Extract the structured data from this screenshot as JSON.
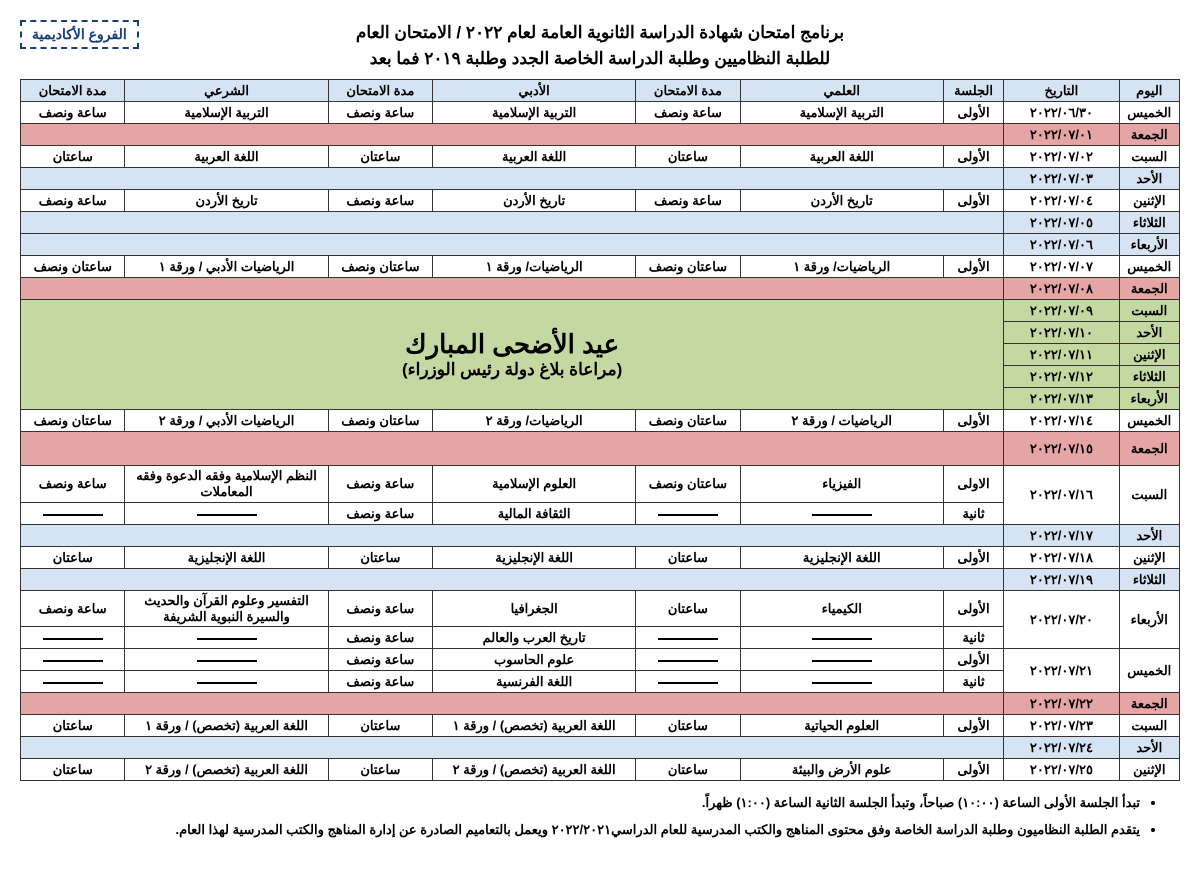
{
  "badge": "الفروع الأكاديمية",
  "title1": "برنامج امتحان شهادة الدراسة الثانوية العامة لعام ٢٠٢٢ / الامتحان العام",
  "title2": "للطلبة النظاميين وطلبة الدراسة الخاصة الجدد وطلبة ٢٠١٩ فما بعد",
  "headers": {
    "day": "اليوم",
    "date": "التاريخ",
    "session": "الجلسة",
    "sci": "العلمي",
    "lit": "الأدبي",
    "rel": "الشرعي",
    "dur": "مدة الامتحان"
  },
  "holiday": {
    "title": "عيد الأضحى المبارك",
    "sub": "(مراعاة بلاغ دولة رئيس الوزراء)"
  },
  "rows": [
    {
      "day": "الخميس",
      "date": "٢٠٢٢/٠٦/٣٠",
      "sess": "الأولى",
      "sci": "التربية الإسلامية",
      "dsci": "ساعة ونصف",
      "lit": "التربية الإسلامية",
      "dlit": "ساعة ونصف",
      "rel": "التربية الإسلامية",
      "drel": "ساعة ونصف",
      "bg": "white"
    },
    {
      "day": "الجمعة",
      "date": "٢٠٢٢/٠٧/٠١",
      "bg": "red",
      "span": true
    },
    {
      "day": "السبت",
      "date": "٢٠٢٢/٠٧/٠٢",
      "sess": "الأولى",
      "sci": "اللغة العربية",
      "dsci": "ساعتان",
      "lit": "اللغة العربية",
      "dlit": "ساعتان",
      "rel": "اللغة العربية",
      "drel": "ساعتان",
      "bg": "white"
    },
    {
      "day": "الأحد",
      "date": "٢٠٢٢/٠٧/٠٣",
      "bg": "blue",
      "span": true
    },
    {
      "day": "الإثنين",
      "date": "٢٠٢٢/٠٧/٠٤",
      "sess": "الأولى",
      "sci": "تاريخ الأردن",
      "dsci": "ساعة ونصف",
      "lit": "تاريخ الأردن",
      "dlit": "ساعة ونصف",
      "rel": "تاريخ الأردن",
      "drel": "ساعة ونصف",
      "bg": "white"
    },
    {
      "day": "الثلاثاء",
      "date": "٢٠٢٢/٠٧/٠٥",
      "bg": "blue",
      "span": true
    },
    {
      "day": "الأربعاء",
      "date": "٢٠٢٢/٠٧/٠٦",
      "bg": "blue",
      "span": true
    },
    {
      "day": "الخميس",
      "date": "٢٠٢٢/٠٧/٠٧",
      "sess": "الأولى",
      "sci": "الرياضيات/ ورقة ١",
      "dsci": "ساعتان ونصف",
      "lit": "الرياضيات/ ورقة ١",
      "dlit": "ساعتان ونصف",
      "rel": "الرياضيات الأدبي / ورقة ١",
      "drel": "ساعتان ونصف",
      "bg": "white"
    },
    {
      "day": "الجمعة",
      "date": "٢٠٢٢/٠٧/٠٨",
      "bg": "red",
      "span": true
    }
  ],
  "holidays": [
    {
      "day": "السبت",
      "date": "٢٠٢٢/٠٧/٠٩"
    },
    {
      "day": "الأحد",
      "date": "٢٠٢٢/٠٧/١٠"
    },
    {
      "day": "الإثنين",
      "date": "٢٠٢٢/٠٧/١١"
    },
    {
      "day": "الثلاثاء",
      "date": "٢٠٢٢/٠٧/١٢"
    },
    {
      "day": "الأربعاء",
      "date": "٢٠٢٢/٠٧/١٣"
    }
  ],
  "rows2": [
    {
      "day": "الخميس",
      "date": "٢٠٢٢/٠٧/١٤",
      "sess": "الأولى",
      "sci": "الرياضيات / ورقة ٢",
      "dsci": "ساعتان ونصف",
      "lit": "الرياضيات/ ورقة ٢",
      "dlit": "ساعتان ونصف",
      "rel": "الرياضيات الأدبي / ورقة ٢",
      "drel": "ساعتان ونصف",
      "bg": "white"
    },
    {
      "day": "الجمعة",
      "date": "٢٠٢٢/٠٧/١٥",
      "bg": "red",
      "span": true,
      "tall": true
    }
  ],
  "sat16": {
    "day": "السبت",
    "date": "٢٠٢٢/٠٧/١٦",
    "s1": {
      "sess": "الاولى",
      "sci": "الفيزياء",
      "dsci": "ساعتان ونصف",
      "lit": "العلوم الإسلامية",
      "dlit": "ساعة ونصف",
      "rel": "النظم الإسلامية وفقه الدعوة وفقه المعاملات",
      "drel": "ساعة ونصف"
    },
    "s2": {
      "sess": "ثانية",
      "lit": "الثقافة المالية",
      "dlit": "ساعة ونصف"
    }
  },
  "rows3": [
    {
      "day": "الأحد",
      "date": "٢٠٢٢/٠٧/١٧",
      "bg": "blue",
      "span": true
    },
    {
      "day": "الإثنين",
      "date": "٢٠٢٢/٠٧/١٨",
      "sess": "الأولى",
      "sci": "اللغة الإنجليزية",
      "dsci": "ساعتان",
      "lit": "اللغة الإنجليزية",
      "dlit": "ساعتان",
      "rel": "اللغة الإنجليزية",
      "drel": "ساعتان",
      "bg": "white"
    },
    {
      "day": "الثلاثاء",
      "date": "٢٠٢٢/٠٧/١٩",
      "bg": "blue",
      "span": true
    }
  ],
  "wed20": {
    "day": "الأربعاء",
    "date": "٢٠٢٢/٠٧/٢٠",
    "s1": {
      "sess": "الأولى",
      "sci": "الكيمياء",
      "dsci": "ساعتان",
      "lit": "الجغرافيا",
      "dlit": "ساعة ونصف",
      "rel": "التفسير وعلوم القرآن والحديث والسيرة النبوية الشريفة",
      "drel": "ساعة ونصف"
    },
    "s2": {
      "sess": "ثانية",
      "lit": "تاريخ العرب والعالم",
      "dlit": "ساعة ونصف"
    }
  },
  "thu21": {
    "day": "الخميس",
    "date": "٢٠٢٢/٠٧/٢١",
    "s1": {
      "sess": "الأولى",
      "lit": "علوم الحاسوب",
      "dlit": "ساعة ونصف"
    },
    "s2": {
      "sess": "ثانية",
      "lit": "اللغة الفرنسية",
      "dlit": "ساعة ونصف"
    }
  },
  "rows4": [
    {
      "day": "الجمعة",
      "date": "٢٠٢٢/٠٧/٢٢",
      "bg": "red",
      "span": true
    },
    {
      "day": "السبت",
      "date": "٢٠٢٢/٠٧/٢٣",
      "sess": "الأولى",
      "sci": "العلوم الحياتية",
      "dsci": "ساعتان",
      "lit": "اللغة العربية (تخصص) / ورقة ١",
      "dlit": "ساعتان",
      "rel": "اللغة العربية (تخصص) / ورقة ١",
      "drel": "ساعتان",
      "bg": "white"
    },
    {
      "day": "الأحد",
      "date": "٢٠٢٢/٠٧/٢٤",
      "bg": "blue",
      "span": true
    },
    {
      "day": "الإثنين",
      "date": "٢٠٢٢/٠٧/٢٥",
      "sess": "الأولى",
      "sci": "علوم الأرض والبيئة",
      "dsci": "ساعتان",
      "lit": "اللغة العربية (تخصص) / ورقة ٢",
      "dlit": "ساعتان",
      "rel": "اللغة العربية (تخصص) / ورقة ٢",
      "drel": "ساعتان",
      "bg": "white"
    }
  ],
  "notes": [
    "تبدأ الجلسة الأولى الساعة (١٠:٠٠) صباحاً، وتبدأ الجلسة الثانية الساعة (١:٠٠) ظهراً.",
    "يتقدم الطلبة النظاميون وطلبة الدراسة الخاصة وفق محتوى المناهج والكتب المدرسية للعام الدراسي٢٠٢٢/٢٠٢١ ويعمل بالتعاميم الصادرة عن إدارة المناهج والكتب المدرسية لهذا العام."
  ]
}
